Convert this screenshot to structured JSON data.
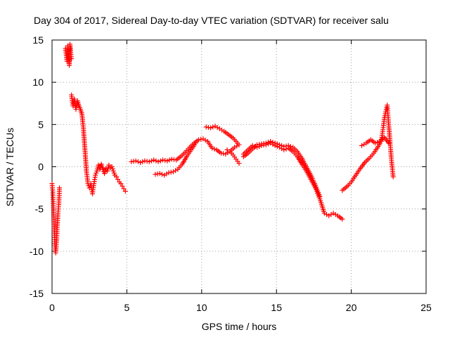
{
  "chart_data": {
    "type": "scatter",
    "title": "Day 304 of 2017, Sidereal Day-to-day VTEC variation (SDTVAR) for receiver salu",
    "xlabel": "GPS time / hours",
    "ylabel": "SDTVAR / TECUs",
    "xlim": [
      0,
      25
    ],
    "ylim": [
      -15,
      15
    ],
    "xticks": [
      "0",
      "5",
      "10",
      "15",
      "20",
      "25"
    ],
    "yticks": [
      "-15",
      "-10",
      "-5",
      "0",
      "5",
      "10",
      "15"
    ],
    "grid": true,
    "marker": "plus",
    "color": "#ff0000",
    "series": [
      {
        "name": "SDTVAR",
        "segments": [
          {
            "x": [
              0.0,
              0.05,
              0.1,
              0.15,
              0.2,
              0.25,
              0.3,
              0.35,
              0.4,
              0.45,
              0.5
            ],
            "y": [
              -2.0,
              -3.0,
              -5.0,
              -7.5,
              -9.5,
              -10.2,
              -9.0,
              -7.0,
              -5.5,
              -4.5,
              -2.5
            ]
          },
          {
            "x": [
              0.9,
              1.0,
              1.05,
              1.1,
              1.15,
              1.2,
              1.25,
              1.3
            ],
            "y": [
              14.0,
              12.5,
              14.3,
              13.2,
              12.0,
              14.5,
              13.5,
              12.8
            ]
          },
          {
            "x": [
              1.3,
              1.4,
              1.5,
              1.6,
              1.7,
              1.8,
              1.9,
              2.0,
              2.1,
              2.2,
              2.3,
              2.4,
              2.5,
              2.6,
              2.7,
              2.8,
              2.9,
              3.0,
              3.1,
              3.2,
              3.3,
              3.4,
              3.5,
              3.6,
              3.7,
              3.8,
              3.9,
              4.0,
              4.1,
              4.2,
              4.3,
              4.4,
              4.5,
              4.6,
              4.7,
              4.8,
              4.9
            ],
            "y": [
              8.5,
              7.2,
              8.0,
              6.8,
              7.8,
              7.2,
              6.8,
              6.2,
              4.5,
              2.0,
              -0.5,
              -2.0,
              -2.5,
              -2.0,
              -3.2,
              -2.0,
              -1.0,
              -0.5,
              0.2,
              -0.3,
              0.3,
              -0.3,
              -0.8,
              -0.2,
              -0.5,
              0.2,
              -0.1,
              0.0,
              -0.5,
              -1.0,
              -1.2,
              -1.5,
              -1.8,
              -2.0,
              -2.3,
              -2.6,
              -2.9
            ]
          },
          {
            "x": [
              5.3,
              5.6,
              5.9,
              6.2,
              6.5,
              6.8,
              7.1,
              7.4,
              7.7,
              8.0,
              8.3,
              8.6,
              8.9,
              9.2,
              9.5,
              9.8,
              10.1,
              10.4,
              10.7,
              11.0,
              11.3,
              11.6,
              11.9,
              12.2,
              12.5
            ],
            "y": [
              0.6,
              0.7,
              0.5,
              0.7,
              0.6,
              0.8,
              0.6,
              0.8,
              0.7,
              0.9,
              0.8,
              1.2,
              1.7,
              2.3,
              2.8,
              3.2,
              3.3,
              3.0,
              2.2,
              2.0,
              1.6,
              1.5,
              1.8,
              2.3,
              2.6
            ]
          },
          {
            "x": [
              6.9,
              7.2,
              7.5,
              7.8,
              8.1,
              8.4,
              8.7,
              9.0,
              9.3,
              9.6
            ],
            "y": [
              -0.9,
              -0.8,
              -1.0,
              -0.7,
              -0.6,
              -0.3,
              0.3,
              1.2,
              2.0,
              2.8
            ]
          },
          {
            "x": [
              10.3,
              10.6,
              10.9,
              11.2,
              11.5,
              11.8,
              12.1,
              12.4
            ],
            "y": [
              4.7,
              4.6,
              4.8,
              4.5,
              4.2,
              3.8,
              3.4,
              2.8
            ]
          },
          {
            "x": [
              11.7,
              11.9,
              12.1,
              12.3,
              12.5
            ],
            "y": [
              2.0,
              1.8,
              1.4,
              0.9,
              0.4
            ]
          },
          {
            "x": [
              12.8,
              13.1,
              13.4,
              13.7,
              14.0,
              14.3,
              14.6,
              14.9,
              15.2,
              15.5,
              15.8,
              16.1,
              16.4,
              16.7,
              17.0,
              17.3,
              17.6,
              17.9,
              18.2,
              18.5,
              18.8,
              19.1,
              19.4
            ],
            "y": [
              1.5,
              2.0,
              2.5,
              2.3,
              2.5,
              2.6,
              2.8,
              2.5,
              2.3,
              2.0,
              2.2,
              1.8,
              1.2,
              0.3,
              -0.5,
              -1.5,
              -2.5,
              -3.8,
              -5.5,
              -5.8,
              -5.5,
              -5.8,
              -6.2
            ]
          },
          {
            "x": [
              12.8,
              13.1,
              13.4,
              13.7,
              14.0,
              14.3,
              14.6,
              14.9,
              15.2,
              15.5,
              15.8,
              16.1,
              16.4,
              16.7,
              17.0,
              17.3,
              17.6,
              17.9
            ],
            "y": [
              1.2,
              1.6,
              2.1,
              2.6,
              2.7,
              2.8,
              3.0,
              2.8,
              2.6,
              2.4,
              2.5,
              2.3,
              1.8,
              1.0,
              0.0,
              -1.0,
              -2.2,
              -3.5
            ]
          },
          {
            "x": [
              19.4,
              19.6,
              19.8,
              20.0,
              20.3,
              20.6,
              20.9,
              21.2,
              21.5,
              21.8,
              22.0,
              22.1,
              22.2,
              22.3,
              22.4,
              22.5,
              22.6,
              22.7,
              22.8
            ],
            "y": [
              -2.8,
              -2.5,
              -2.2,
              -1.8,
              -1.0,
              -0.2,
              0.5,
              1.0,
              1.6,
              2.4,
              3.0,
              4.2,
              5.6,
              6.5,
              7.3,
              5.0,
              2.7,
              0.5,
              -1.2
            ]
          },
          {
            "x": [
              20.7,
              21.0,
              21.3,
              21.6,
              21.9,
              22.2,
              22.5
            ],
            "y": [
              2.5,
              2.8,
              3.2,
              2.8,
              3.0,
              3.5,
              2.8
            ]
          }
        ]
      }
    ]
  }
}
